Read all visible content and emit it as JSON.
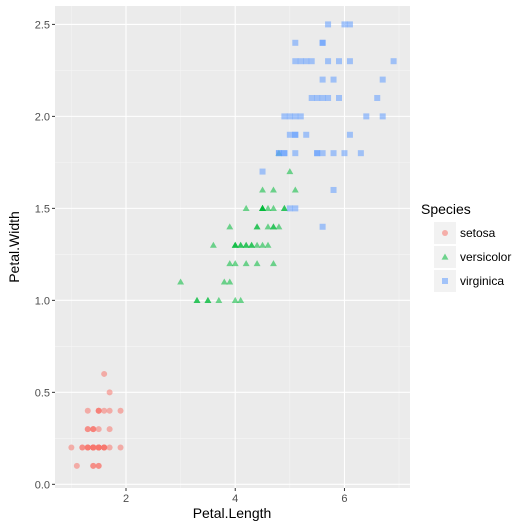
{
  "chart_data": {
    "type": "scatter",
    "xlabel": "Petal.Length",
    "ylabel": "Petal.Width",
    "xlim": [
      0.7,
      7.2
    ],
    "ylim": [
      -0.02,
      2.6
    ],
    "x_ticks": [
      2,
      4,
      6
    ],
    "y_ticks": [
      0.0,
      0.5,
      1.0,
      1.5,
      2.0,
      2.5
    ],
    "x_tick_labels": [
      "2",
      "4",
      "6"
    ],
    "y_tick_labels": [
      "0.0",
      "0.5",
      "1.0",
      "1.5",
      "2.0",
      "2.5"
    ],
    "grid": true,
    "legend": {
      "title": "Species",
      "position": "right"
    },
    "series": [
      {
        "name": "setosa",
        "shape": "circle",
        "color": "#F8766D",
        "points": [
          [
            1.4,
            0.2
          ],
          [
            1.4,
            0.2
          ],
          [
            1.3,
            0.2
          ],
          [
            1.5,
            0.2
          ],
          [
            1.4,
            0.2
          ],
          [
            1.7,
            0.4
          ],
          [
            1.4,
            0.3
          ],
          [
            1.5,
            0.2
          ],
          [
            1.4,
            0.2
          ],
          [
            1.5,
            0.1
          ],
          [
            1.5,
            0.2
          ],
          [
            1.6,
            0.2
          ],
          [
            1.4,
            0.1
          ],
          [
            1.1,
            0.1
          ],
          [
            1.2,
            0.2
          ],
          [
            1.5,
            0.4
          ],
          [
            1.3,
            0.4
          ],
          [
            1.4,
            0.3
          ],
          [
            1.7,
            0.3
          ],
          [
            1.5,
            0.3
          ],
          [
            1.7,
            0.2
          ],
          [
            1.5,
            0.4
          ],
          [
            1.0,
            0.2
          ],
          [
            1.7,
            0.5
          ],
          [
            1.9,
            0.2
          ],
          [
            1.6,
            0.2
          ],
          [
            1.6,
            0.4
          ],
          [
            1.5,
            0.2
          ],
          [
            1.4,
            0.2
          ],
          [
            1.6,
            0.2
          ],
          [
            1.6,
            0.2
          ],
          [
            1.5,
            0.4
          ],
          [
            1.5,
            0.1
          ],
          [
            1.4,
            0.2
          ],
          [
            1.5,
            0.2
          ],
          [
            1.2,
            0.2
          ],
          [
            1.3,
            0.2
          ],
          [
            1.4,
            0.1
          ],
          [
            1.3,
            0.2
          ],
          [
            1.5,
            0.2
          ],
          [
            1.3,
            0.3
          ],
          [
            1.3,
            0.3
          ],
          [
            1.3,
            0.2
          ],
          [
            1.6,
            0.6
          ],
          [
            1.9,
            0.4
          ],
          [
            1.4,
            0.3
          ],
          [
            1.6,
            0.2
          ],
          [
            1.4,
            0.2
          ],
          [
            1.5,
            0.2
          ],
          [
            1.4,
            0.2
          ]
        ]
      },
      {
        "name": "versicolor",
        "shape": "triangle",
        "color": "#00BA38",
        "points": [
          [
            4.7,
            1.4
          ],
          [
            4.5,
            1.5
          ],
          [
            4.9,
            1.5
          ],
          [
            4.0,
            1.3
          ],
          [
            4.6,
            1.5
          ],
          [
            4.5,
            1.3
          ],
          [
            4.7,
            1.6
          ],
          [
            3.3,
            1.0
          ],
          [
            4.6,
            1.3
          ],
          [
            3.9,
            1.4
          ],
          [
            3.5,
            1.0
          ],
          [
            4.2,
            1.5
          ],
          [
            4.0,
            1.0
          ],
          [
            4.7,
            1.4
          ],
          [
            3.6,
            1.3
          ],
          [
            4.4,
            1.4
          ],
          [
            4.5,
            1.5
          ],
          [
            4.1,
            1.0
          ],
          [
            4.5,
            1.5
          ],
          [
            3.9,
            1.1
          ],
          [
            4.8,
            1.8
          ],
          [
            4.0,
            1.3
          ],
          [
            4.9,
            1.5
          ],
          [
            4.7,
            1.2
          ],
          [
            4.3,
            1.3
          ],
          [
            4.4,
            1.4
          ],
          [
            4.8,
            1.4
          ],
          [
            5.0,
            1.7
          ],
          [
            4.5,
            1.5
          ],
          [
            3.5,
            1.0
          ],
          [
            3.8,
            1.1
          ],
          [
            3.7,
            1.0
          ],
          [
            3.9,
            1.2
          ],
          [
            5.1,
            1.6
          ],
          [
            4.5,
            1.5
          ],
          [
            4.5,
            1.6
          ],
          [
            4.7,
            1.5
          ],
          [
            4.4,
            1.3
          ],
          [
            4.1,
            1.3
          ],
          [
            4.0,
            1.3
          ],
          [
            4.4,
            1.2
          ],
          [
            4.6,
            1.4
          ],
          [
            4.0,
            1.2
          ],
          [
            3.3,
            1.0
          ],
          [
            4.2,
            1.3
          ],
          [
            4.2,
            1.2
          ],
          [
            4.2,
            1.3
          ],
          [
            4.3,
            1.3
          ],
          [
            3.0,
            1.1
          ],
          [
            4.1,
            1.3
          ]
        ]
      },
      {
        "name": "virginica",
        "shape": "square",
        "color": "#619CFF",
        "points": [
          [
            6.0,
            2.5
          ],
          [
            5.1,
            1.9
          ],
          [
            5.9,
            2.1
          ],
          [
            5.6,
            1.8
          ],
          [
            5.8,
            2.2
          ],
          [
            6.6,
            2.1
          ],
          [
            4.5,
            1.7
          ],
          [
            6.3,
            1.8
          ],
          [
            5.8,
            1.8
          ],
          [
            6.1,
            2.5
          ],
          [
            5.1,
            2.0
          ],
          [
            5.3,
            1.9
          ],
          [
            5.5,
            2.1
          ],
          [
            5.0,
            2.0
          ],
          [
            5.1,
            2.4
          ],
          [
            5.3,
            2.3
          ],
          [
            5.5,
            1.8
          ],
          [
            6.7,
            2.2
          ],
          [
            6.9,
            2.3
          ],
          [
            5.0,
            1.5
          ],
          [
            5.7,
            2.3
          ],
          [
            4.9,
            2.0
          ],
          [
            6.7,
            2.0
          ],
          [
            4.9,
            1.8
          ],
          [
            5.7,
            2.1
          ],
          [
            6.0,
            1.8
          ],
          [
            4.8,
            1.8
          ],
          [
            4.9,
            1.8
          ],
          [
            5.6,
            2.1
          ],
          [
            5.8,
            1.6
          ],
          [
            6.1,
            1.9
          ],
          [
            6.4,
            2.0
          ],
          [
            5.6,
            2.2
          ],
          [
            5.1,
            1.5
          ],
          [
            5.6,
            1.4
          ],
          [
            6.1,
            2.3
          ],
          [
            5.6,
            2.4
          ],
          [
            5.5,
            1.8
          ],
          [
            4.8,
            1.8
          ],
          [
            5.4,
            2.1
          ],
          [
            5.6,
            2.4
          ],
          [
            5.1,
            2.3
          ],
          [
            5.1,
            1.9
          ],
          [
            5.9,
            2.3
          ],
          [
            5.7,
            2.5
          ],
          [
            5.2,
            2.3
          ],
          [
            5.0,
            1.9
          ],
          [
            5.2,
            2.0
          ],
          [
            5.4,
            2.3
          ],
          [
            5.1,
            1.8
          ]
        ]
      }
    ]
  }
}
